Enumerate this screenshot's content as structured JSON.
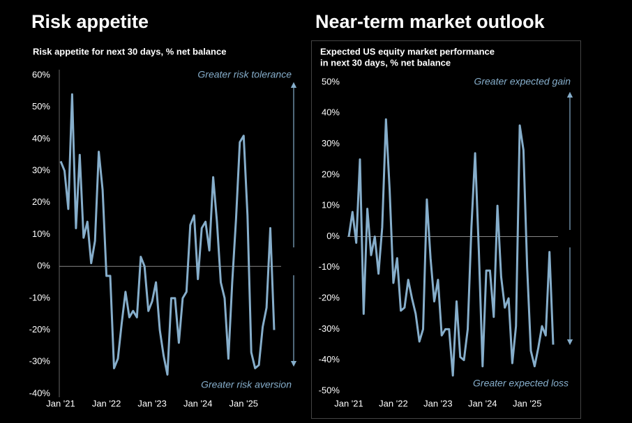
{
  "chart_data": [
    {
      "type": "line",
      "title": "Risk appetite",
      "subtitle": [
        "Risk appetite for next 30 days, % net balance"
      ],
      "annotations": [
        "Greater risk tolerance",
        "Greater risk aversion"
      ],
      "categories": [
        "Jan '21",
        null,
        null,
        null,
        null,
        null,
        null,
        null,
        null,
        null,
        null,
        null,
        "Jan '22",
        null,
        null,
        null,
        null,
        null,
        null,
        null,
        null,
        null,
        null,
        null,
        "Jan '23",
        null,
        null,
        null,
        null,
        null,
        null,
        null,
        null,
        null,
        null,
        null,
        "Jan '24",
        null,
        null,
        null,
        null,
        null,
        null,
        null,
        null,
        null,
        null,
        null,
        "Jan '25",
        null,
        null,
        null,
        null,
        null,
        null,
        null,
        null
      ],
      "values": [
        33,
        30,
        18,
        54,
        12,
        35,
        9,
        14,
        1,
        8,
        36,
        24,
        -3,
        -3,
        -32,
        -29,
        -18,
        -8,
        -16,
        -14,
        -16,
        3,
        0,
        -14,
        -11,
        -5,
        -20,
        -28,
        -34,
        -10,
        -10,
        -24,
        -10,
        -8,
        13,
        16,
        -4,
        12,
        14,
        5,
        28,
        14,
        -5,
        -10,
        -29,
        -5,
        15,
        39,
        41,
        16,
        -27,
        -32,
        -31,
        -19,
        -13,
        12,
        -20
      ],
      "color": "#86aecb",
      "ylim": [
        -40,
        60
      ],
      "yticks": [
        {
          "value": -40,
          "label": "-40%"
        },
        {
          "value": -30,
          "label": "-30%"
        },
        {
          "value": -20,
          "label": "-20%"
        },
        {
          "value": -10,
          "label": "-10%"
        },
        {
          "value": 0,
          "label": "0%"
        },
        {
          "value": 10,
          "label": "10%"
        },
        {
          "value": 20,
          "label": "20%"
        },
        {
          "value": 30,
          "label": "30%"
        },
        {
          "value": 40,
          "label": "40%"
        },
        {
          "value": 50,
          "label": "50%"
        },
        {
          "value": 60,
          "label": "60%"
        }
      ]
    },
    {
      "type": "line",
      "title": "Near-term market outlook",
      "subtitle": [
        "Expected US equity market performance",
        "in next 30 days, % net balance"
      ],
      "annotations": [
        "Greater expected gain",
        "Greater  expected loss"
      ],
      "categories": [
        "Jan '21",
        null,
        null,
        null,
        null,
        null,
        null,
        null,
        null,
        null,
        null,
        null,
        "Jan '22",
        null,
        null,
        null,
        null,
        null,
        null,
        null,
        null,
        null,
        null,
        null,
        "Jan '23",
        null,
        null,
        null,
        null,
        null,
        null,
        null,
        null,
        null,
        null,
        null,
        "Jan '24",
        null,
        null,
        null,
        null,
        null,
        null,
        null,
        null,
        null,
        null,
        null,
        "Jan '25",
        null,
        null,
        null,
        null,
        null,
        null,
        null
      ],
      "values": [
        0,
        8,
        -2,
        25,
        -25,
        9,
        -6,
        0,
        -12,
        3,
        38,
        15,
        -15,
        -7,
        -24,
        -23,
        -14,
        -20,
        -25,
        -34,
        -30,
        12,
        -7,
        -21,
        -14,
        -32,
        -30,
        -30,
        -45,
        -21,
        -39,
        -40,
        -30,
        3,
        27,
        -5,
        -42,
        -11,
        -11,
        -26,
        10,
        -13,
        -23,
        -20,
        -41,
        -29,
        36,
        28,
        -10,
        -37,
        -42,
        -36,
        -29,
        -32,
        -5,
        -35
      ],
      "color": "#86aecb",
      "ylim": [
        -50,
        50
      ],
      "yticks": [
        {
          "value": -50,
          "label": "-50%"
        },
        {
          "value": -40,
          "label": "-40%"
        },
        {
          "value": -30,
          "label": "-30%"
        },
        {
          "value": -20,
          "label": "-20%"
        },
        {
          "value": -10,
          "label": "-10%"
        },
        {
          "value": 0,
          "label": "0%"
        },
        {
          "value": 10,
          "label": "10%"
        },
        {
          "value": 20,
          "label": "20%"
        },
        {
          "value": 30,
          "label": "30%"
        },
        {
          "value": 40,
          "label": "40%"
        },
        {
          "value": 50,
          "label": "50%"
        }
      ]
    }
  ]
}
